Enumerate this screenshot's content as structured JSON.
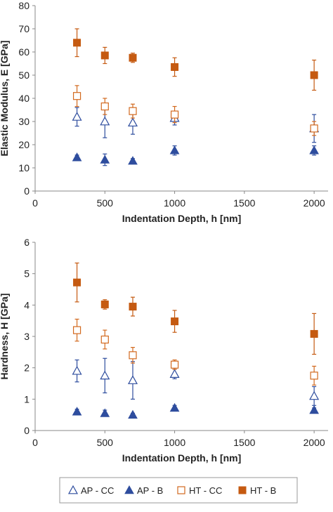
{
  "chart_data": [
    {
      "type": "scatter",
      "title": "",
      "xlabel": "Indentation Depth, h [nm]",
      "ylabel": "Elastic Modulus, E [GPa]",
      "xlim": [
        0,
        2100
      ],
      "ylim": [
        0,
        80
      ],
      "xticks": [
        "0",
        "500",
        "1000",
        "1500",
        "2000"
      ],
      "yticks": [
        "0",
        "10",
        "20",
        "30",
        "40",
        "50",
        "60",
        "70",
        "80"
      ],
      "grid": false,
      "series": [
        {
          "name": "AP - CC",
          "marker": "triangle-open",
          "color": "#2E4D9E",
          "points": [
            {
              "x": 300,
              "y": 32,
              "err": 4
            },
            {
              "x": 500,
              "y": 30,
              "err": 7
            },
            {
              "x": 700,
              "y": 29.5,
              "err": 5
            },
            {
              "x": 1000,
              "y": 31.5,
              "err": 3
            },
            {
              "x": 2000,
              "y": 27,
              "err": 6
            }
          ]
        },
        {
          "name": "AP - B",
          "marker": "triangle-filled",
          "color": "#2E4D9E",
          "points": [
            {
              "x": 300,
              "y": 14.5,
              "err": 1
            },
            {
              "x": 500,
              "y": 13.5,
              "err": 2.5
            },
            {
              "x": 700,
              "y": 13,
              "err": 1
            },
            {
              "x": 1000,
              "y": 17.5,
              "err": 2
            },
            {
              "x": 2000,
              "y": 17.5,
              "err": 2
            }
          ]
        },
        {
          "name": "HT - CC",
          "marker": "square-open",
          "color": "#D2691E",
          "points": [
            {
              "x": 300,
              "y": 41,
              "err": 4.5
            },
            {
              "x": 500,
              "y": 36.5,
              "err": 3.5
            },
            {
              "x": 700,
              "y": 34.5,
              "err": 3
            },
            {
              "x": 1000,
              "y": 33,
              "err": 3.5
            },
            {
              "x": 2000,
              "y": 27,
              "err": 3
            }
          ]
        },
        {
          "name": "HT - B",
          "marker": "square-filled",
          "color": "#C55A11",
          "points": [
            {
              "x": 300,
              "y": 64,
              "err": 6
            },
            {
              "x": 500,
              "y": 58.5,
              "err": 3.5
            },
            {
              "x": 700,
              "y": 57.5,
              "err": 2
            },
            {
              "x": 1000,
              "y": 53.5,
              "err": 4
            },
            {
              "x": 2000,
              "y": 50,
              "err": 6.5
            }
          ]
        }
      ]
    },
    {
      "type": "scatter",
      "title": "",
      "xlabel": "Indentation Depth, h [nm]",
      "ylabel": "Hardness, H [GPa]",
      "xlim": [
        0,
        2100
      ],
      "ylim": [
        0,
        6
      ],
      "xticks": [
        "0",
        "500",
        "1000",
        "1500",
        "2000"
      ],
      "yticks": [
        "0",
        "1",
        "2",
        "3",
        "4",
        "5",
        "6"
      ],
      "grid": false,
      "series": [
        {
          "name": "AP - CC",
          "marker": "triangle-open",
          "color": "#2E4D9E",
          "points": [
            {
              "x": 300,
              "y": 1.9,
              "err": 0.35
            },
            {
              "x": 500,
              "y": 1.75,
              "err": 0.55
            },
            {
              "x": 700,
              "y": 1.6,
              "err": 0.6
            },
            {
              "x": 1000,
              "y": 1.8,
              "err": 0.15
            },
            {
              "x": 2000,
              "y": 1.1,
              "err": 0.3
            }
          ]
        },
        {
          "name": "AP - B",
          "marker": "triangle-filled",
          "color": "#2E4D9E",
          "points": [
            {
              "x": 300,
              "y": 0.6,
              "err": 0.08
            },
            {
              "x": 500,
              "y": 0.55,
              "err": 0.1
            },
            {
              "x": 700,
              "y": 0.5,
              "err": 0.05
            },
            {
              "x": 1000,
              "y": 0.72,
              "err": 0.08
            },
            {
              "x": 2000,
              "y": 0.65,
              "err": 0.07
            }
          ]
        },
        {
          "name": "HT - CC",
          "marker": "square-open",
          "color": "#D2691E",
          "points": [
            {
              "x": 300,
              "y": 3.2,
              "err": 0.35
            },
            {
              "x": 500,
              "y": 2.9,
              "err": 0.3
            },
            {
              "x": 700,
              "y": 2.4,
              "err": 0.25
            },
            {
              "x": 1000,
              "y": 2.1,
              "err": 0.15
            },
            {
              "x": 2000,
              "y": 1.75,
              "err": 0.3
            }
          ]
        },
        {
          "name": "HT - B",
          "marker": "square-filled",
          "color": "#C55A11",
          "points": [
            {
              "x": 300,
              "y": 4.72,
              "err": 0.62
            },
            {
              "x": 500,
              "y": 4.02,
              "err": 0.15
            },
            {
              "x": 700,
              "y": 3.95,
              "err": 0.3
            },
            {
              "x": 1000,
              "y": 3.48,
              "err": 0.35
            },
            {
              "x": 2000,
              "y": 3.08,
              "err": 0.65
            }
          ]
        }
      ]
    }
  ],
  "legend": {
    "placement": "bottom",
    "items": [
      {
        "label": "AP - CC",
        "marker": "triangle-open",
        "color": "#2E4D9E"
      },
      {
        "label": "AP - B",
        "marker": "triangle-filled",
        "color": "#2E4D9E"
      },
      {
        "label": "HT - CC",
        "marker": "square-open",
        "color": "#D2691E"
      },
      {
        "label": "HT - B",
        "marker": "square-filled",
        "color": "#C55A11"
      }
    ]
  },
  "colors": {
    "axis": "#888888",
    "text": "#222222"
  }
}
